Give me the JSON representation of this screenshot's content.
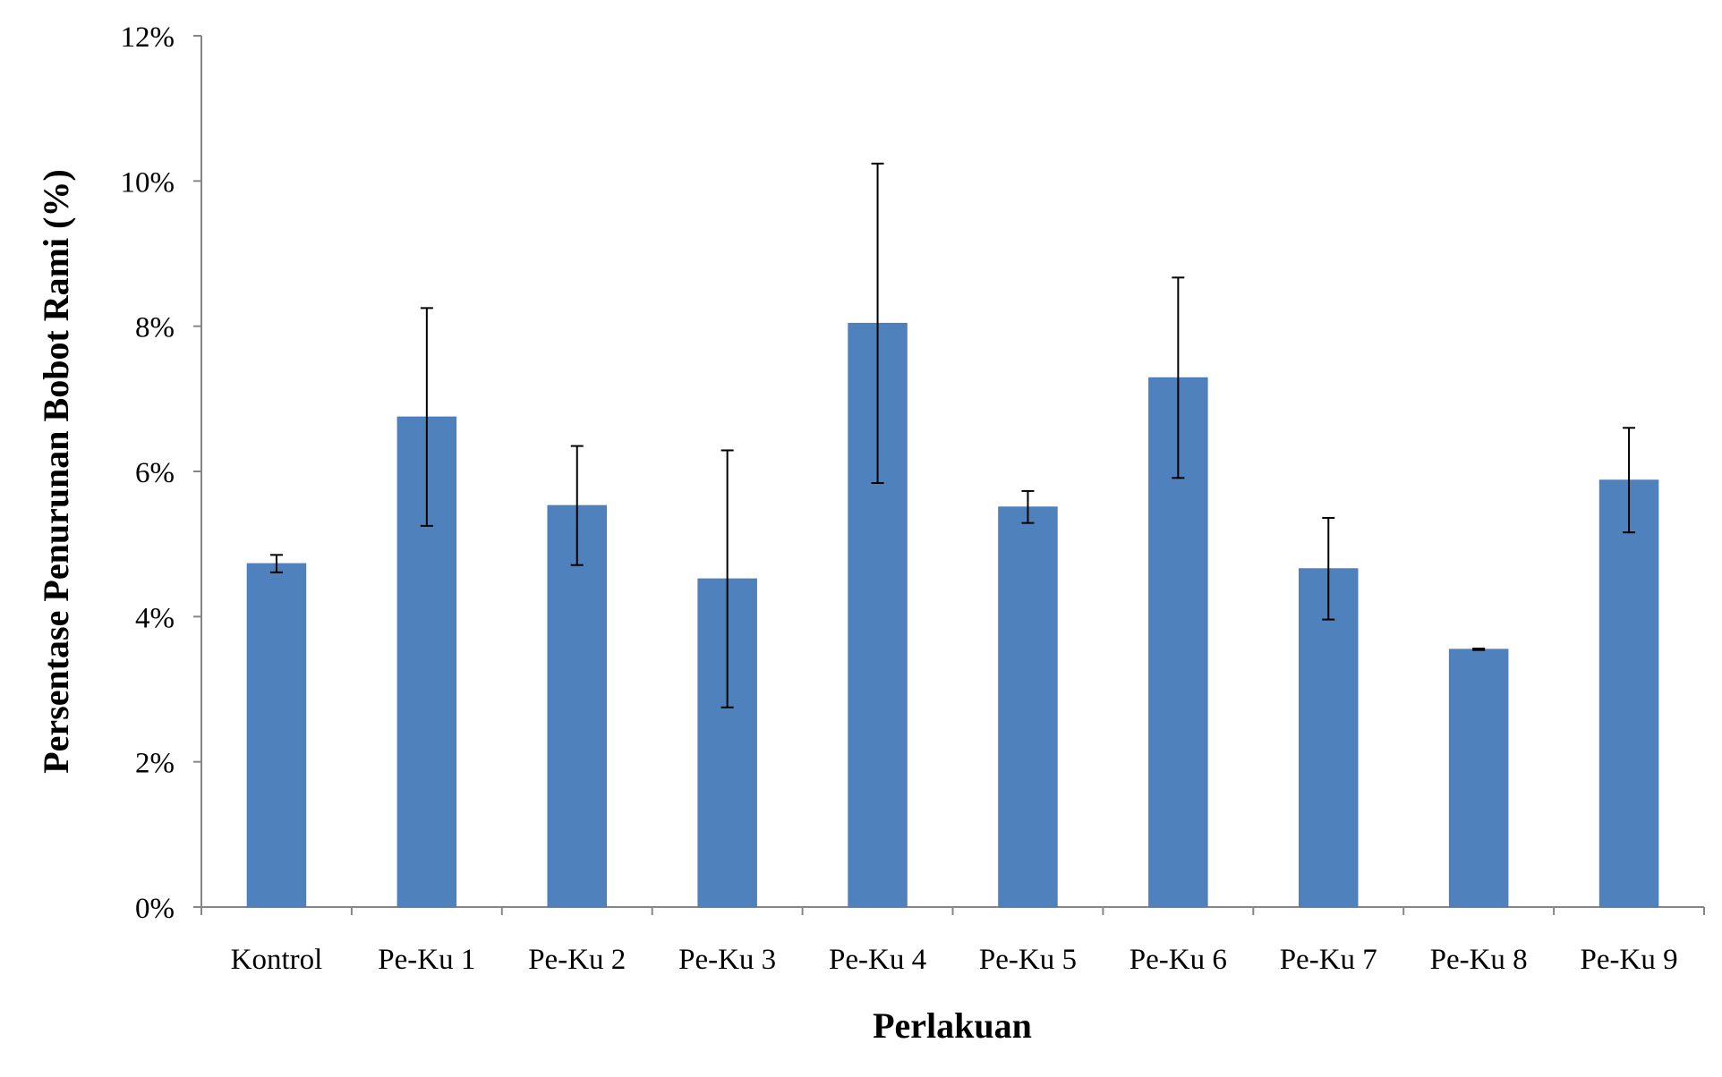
{
  "chart_data": {
    "type": "bar",
    "title": "",
    "xlabel": "Perlakuan",
    "ylabel": "Persentase Penurunan Bobot Rami (%)",
    "categories": [
      "Kontrol",
      "Pe-Ku 1",
      "Pe-Ku 2",
      "Pe-Ku 3",
      "Pe-Ku 4",
      "Pe-Ku 5",
      "Pe-Ku 6",
      "Pe-Ku 7",
      "Pe-Ku 8",
      "Pe-Ku 9"
    ],
    "values": [
      4.73,
      6.75,
      5.53,
      4.52,
      8.04,
      5.51,
      7.29,
      4.66,
      3.55,
      5.88
    ],
    "error": [
      0.12,
      1.5,
      0.82,
      1.77,
      2.2,
      0.22,
      1.38,
      0.7,
      0.01,
      0.72
    ],
    "ylim": [
      0,
      12
    ],
    "yticks": [
      "0%",
      "2%",
      "4%",
      "6%",
      "8%",
      "10%",
      "12%"
    ],
    "ytick_values": [
      0,
      2,
      4,
      6,
      8,
      10,
      12
    ],
    "bar_color": "#4F81BD",
    "grid": false,
    "legend": "none"
  }
}
